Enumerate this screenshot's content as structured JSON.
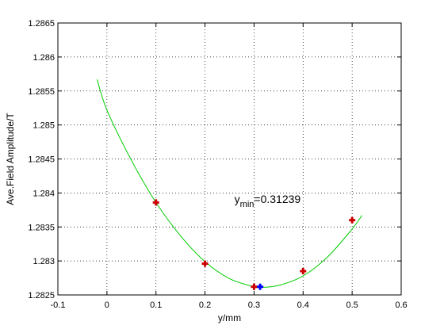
{
  "chart_data": {
    "type": "scatter",
    "xlabel": "y/mm",
    "ylabel": "Ave.Field Amplitude/T",
    "xlim": [
      -0.1,
      0.6
    ],
    "ylim": [
      1.2825,
      1.2865
    ],
    "xticks": [
      -0.1,
      0,
      0.1,
      0.2,
      0.3,
      0.4,
      0.5,
      0.6
    ],
    "xtick_labels": [
      "-0.1",
      "0",
      "0.1",
      "0.2",
      "0.3",
      "0.4",
      "0.5",
      "0.6"
    ],
    "yticks": [
      1.2825,
      1.283,
      1.2835,
      1.284,
      1.2845,
      1.285,
      1.2855,
      1.286,
      1.2865
    ],
    "ytick_labels": [
      "1.2825",
      "1.283",
      "1.2835",
      "1.284",
      "1.2845",
      "1.285",
      "1.2855",
      "1.286",
      "1.2865"
    ],
    "grid": true,
    "grid_style": "dotted",
    "series": [
      {
        "kind": "fit_curve",
        "color": "#00cc00",
        "x": [
          -0.02,
          0.0,
          0.05,
          0.1,
          0.15,
          0.2,
          0.25,
          0.3,
          0.3124,
          0.35,
          0.4,
          0.45,
          0.5,
          0.52
        ],
        "y": [
          1.28567,
          1.28522,
          1.28448,
          1.28386,
          1.28337,
          1.28299,
          1.28274,
          1.28262,
          1.28261,
          1.28264,
          1.28278,
          1.28306,
          1.28347,
          1.28367
        ]
      },
      {
        "kind": "measured_points",
        "color": "#cc0000",
        "marker": "plus",
        "x": [
          0.1,
          0.2,
          0.3,
          0.4,
          0.5
        ],
        "y": [
          1.28386,
          1.28296,
          1.28262,
          1.28285,
          1.2836
        ]
      },
      {
        "kind": "minimum_point",
        "color": "#0000ff",
        "marker": "plus",
        "x": [
          0.31239
        ],
        "y": [
          1.28262
        ]
      }
    ],
    "annotation": {
      "base": "y",
      "subscript": "min",
      "value": "=0.31239",
      "x": 0.26,
      "y": 1.28385
    }
  }
}
